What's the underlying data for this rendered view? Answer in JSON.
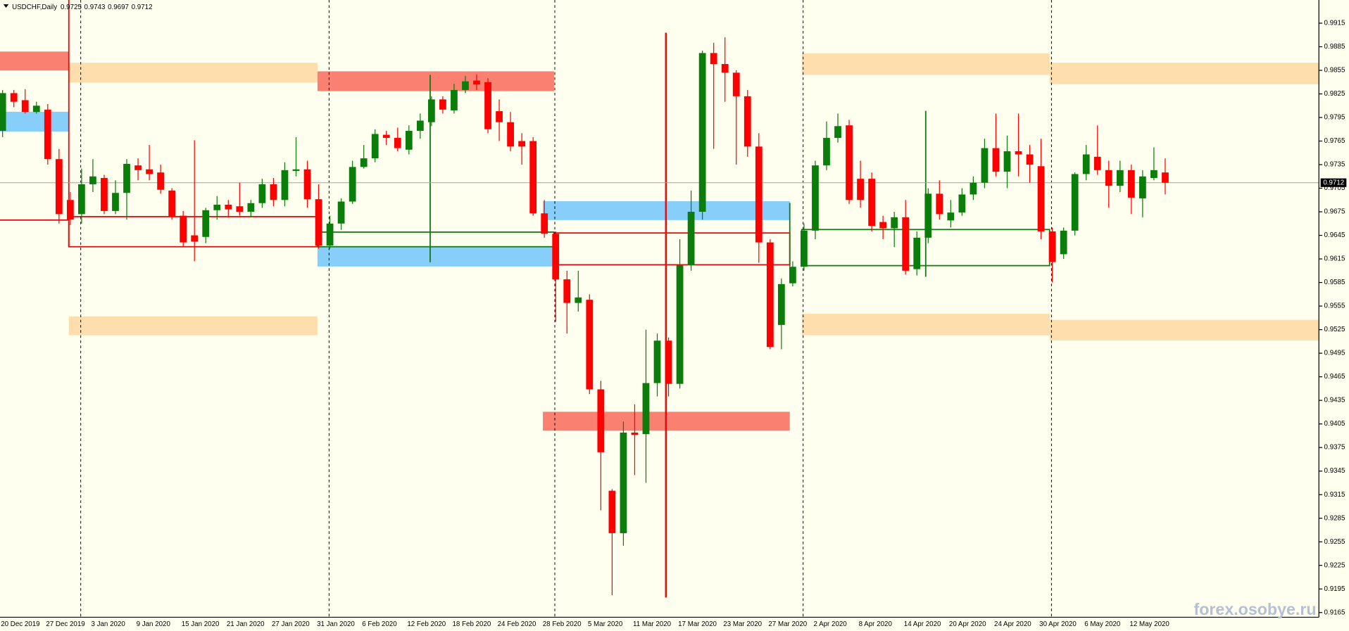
{
  "chart_data": {
    "type": "candlestick",
    "title": "USDCHF,Daily",
    "watermark": "forex.osobye.ru",
    "up_color": "#0b7d0b",
    "down_color": "#ff0000",
    "grid": false,
    "ylim": [
      0.9159,
      0.99445
    ],
    "yticks": [
      0.9915,
      0.9885,
      0.9855,
      0.9825,
      0.9795,
      0.9765,
      0.9735,
      0.9705,
      0.9675,
      0.9645,
      0.9615,
      0.9585,
      0.9555,
      0.9525,
      0.9495,
      0.9465,
      0.9435,
      0.9405,
      0.9375,
      0.9345,
      0.9315,
      0.9285,
      0.9255,
      0.9225,
      0.9195,
      0.9165
    ],
    "categories": [
      "20 Dec 2019",
      null,
      null,
      null,
      "27 Dec 2019",
      null,
      null,
      null,
      "3 Jan 2020",
      null,
      null,
      null,
      "9 Jan 2020",
      null,
      null,
      null,
      "15 Jan 2020",
      null,
      null,
      null,
      "21 Jan 2020",
      null,
      null,
      null,
      "27 Jan 2020",
      null,
      null,
      null,
      "31 Jan 2020",
      null,
      null,
      null,
      "6 Feb 2020",
      null,
      null,
      null,
      "12 Feb 2020",
      null,
      null,
      null,
      "18 Feb 2020",
      null,
      null,
      null,
      "24 Feb 2020",
      null,
      null,
      null,
      "28 Feb 2020",
      null,
      null,
      null,
      "5 Mar 2020",
      null,
      null,
      null,
      "11 Mar 2020",
      null,
      null,
      null,
      "17 Mar 2020",
      null,
      null,
      null,
      "23 Mar 2020",
      null,
      null,
      null,
      "27 Mar 2020",
      null,
      null,
      null,
      "2 Apr 2020",
      null,
      null,
      null,
      "8 Apr 2020",
      null,
      null,
      null,
      "14 Apr 2020",
      null,
      null,
      null,
      "20 Apr 2020",
      null,
      null,
      null,
      "24 Apr 2020",
      null,
      null,
      null,
      "30 Apr 2020",
      null,
      null,
      null,
      "6 May 2020",
      null,
      null,
      null,
      "12 May 2020",
      null,
      null,
      null
    ],
    "open": [
      0.9778,
      0.9826,
      0.9817,
      0.9802,
      0.9805,
      0.9742,
      0.969,
      0.9672,
      0.971,
      0.9718,
      0.9676,
      0.9699,
      0.9734,
      0.9729,
      0.9725,
      0.9702,
      0.967,
      0.9645,
      0.9643,
      0.9677,
      0.9684,
      0.9682,
      0.9675,
      0.9686,
      0.971,
      0.969,
      0.9727,
      0.9729,
      0.9691,
      0.9632,
      0.966,
      0.9688,
      0.9732,
      0.9743,
      0.9773,
      0.9769,
      0.9754,
      0.9778,
      0.9789,
      0.9818,
      0.9804,
      0.983,
      0.9842,
      0.984,
      0.9803,
      0.9789,
      0.9765,
      0.9765,
      0.9673,
      0.9647,
      0.9589,
      0.9559,
      0.9563,
      0.9449,
      0.932,
      0.9266,
      0.9394,
      0.9392,
      0.9457,
      0.9511,
      0.9456,
      0.9607,
      0.9675,
      0.9877,
      0.9863,
      0.9852,
      0.9822,
      0.9758,
      0.9636,
      0.9531,
      0.9584,
      0.9605,
      0.9651,
      0.9734,
      0.9769,
      0.9785,
      0.9717,
      0.9717,
      0.9662,
      0.9654,
      0.9668,
      0.9602,
      0.9642,
      0.9698,
      0.9664,
      0.9674,
      0.9697,
      0.9712,
      0.9756,
      0.9726,
      0.9752,
      0.9748,
      0.9733,
      0.965,
      0.9621,
      0.9651,
      0.9723,
      0.9745,
      0.9728,
      0.9708,
      0.9728,
      0.9692,
      0.9718,
      0.9725
    ],
    "high": [
      0.983,
      0.983,
      0.9831,
      0.9815,
      0.9812,
      0.9755,
      0.97,
      0.973,
      0.9742,
      0.9722,
      0.9715,
      0.9742,
      0.9743,
      0.976,
      0.9735,
      0.9705,
      0.9676,
      0.9766,
      0.968,
      0.9695,
      0.969,
      0.9712,
      0.969,
      0.9717,
      0.9718,
      0.9738,
      0.977,
      0.974,
      0.971,
      0.967,
      0.9692,
      0.974,
      0.976,
      0.978,
      0.9778,
      0.9782,
      0.9785,
      0.98,
      0.9822,
      0.9822,
      0.9838,
      0.9848,
      0.985,
      0.9845,
      0.9818,
      0.9802,
      0.9775,
      0.977,
      0.969,
      0.965,
      0.96,
      0.96,
      0.957,
      0.946,
      0.9322,
      0.9408,
      0.943,
      0.9525,
      0.952,
      0.9515,
      0.964,
      0.9702,
      0.988,
      0.989,
      0.9897,
      0.9855,
      0.983,
      0.9775,
      0.964,
      0.959,
      0.9612,
      0.966,
      0.974,
      0.979,
      0.98,
      0.9792,
      0.974,
      0.9725,
      0.967,
      0.9675,
      0.969,
      0.965,
      0.9705,
      0.9715,
      0.969,
      0.9705,
      0.972,
      0.9768,
      0.98,
      0.9772,
      0.98,
      0.976,
      0.9768,
      0.9655,
      0.9655,
      0.9725,
      0.976,
      0.9785,
      0.974,
      0.974,
      0.9735,
      0.9728,
      0.9757,
      0.9743
    ],
    "low": [
      0.977,
      0.9808,
      0.98,
      0.98,
      0.9735,
      0.966,
      0.9658,
      0.966,
      0.97,
      0.9672,
      0.9672,
      0.9665,
      0.9715,
      0.9715,
      0.9698,
      0.9665,
      0.963,
      0.9612,
      0.9635,
      0.9665,
      0.9668,
      0.967,
      0.9668,
      0.968,
      0.9682,
      0.9682,
      0.972,
      0.968,
      0.9628,
      0.9628,
      0.9652,
      0.9685,
      0.973,
      0.9738,
      0.976,
      0.9752,
      0.9748,
      0.9768,
      0.9784,
      0.98,
      0.98,
      0.9826,
      0.983,
      0.9775,
      0.9765,
      0.9752,
      0.9735,
      0.967,
      0.9642,
      0.9535,
      0.952,
      0.9548,
      0.9443,
      0.9295,
      0.9187,
      0.925,
      0.934,
      0.933,
      0.944,
      0.944,
      0.945,
      0.96,
      0.9665,
      0.9755,
      0.9815,
      0.9735,
      0.9745,
      0.961,
      0.95,
      0.95,
      0.958,
      0.96,
      0.964,
      0.9728,
      0.9763,
      0.9685,
      0.968,
      0.965,
      0.964,
      0.963,
      0.9595,
      0.9594,
      0.9635,
      0.9665,
      0.9655,
      0.967,
      0.969,
      0.9705,
      0.972,
      0.9705,
      0.972,
      0.9712,
      0.964,
      0.9585,
      0.9615,
      0.9645,
      0.9715,
      0.9722,
      0.968,
      0.97,
      0.9672,
      0.9668,
      0.9715,
      0.9697
    ],
    "close": [
      0.9826,
      0.9815,
      0.9802,
      0.981,
      0.9742,
      0.9672,
      0.9665,
      0.971,
      0.972,
      0.9676,
      0.9699,
      0.9736,
      0.9728,
      0.9723,
      0.9703,
      0.9669,
      0.9636,
      0.9637,
      0.9677,
      0.9684,
      0.9678,
      0.9675,
      0.9686,
      0.971,
      0.969,
      0.9728,
      0.9729,
      0.9691,
      0.9632,
      0.966,
      0.9688,
      0.9732,
      0.9743,
      0.9774,
      0.9769,
      0.9756,
      0.9778,
      0.9791,
      0.9818,
      0.9805,
      0.983,
      0.9841,
      0.9837,
      0.978,
      0.9789,
      0.9758,
      0.9758,
      0.9673,
      0.9647,
      0.9589,
      0.9559,
      0.9566,
      0.9449,
      0.9369,
      0.9266,
      0.9394,
      0.9391,
      0.9457,
      0.9511,
      0.9456,
      0.9607,
      0.9675,
      0.9877,
      0.9863,
      0.9852,
      0.9822,
      0.9758,
      0.9636,
      0.9503,
      0.9583,
      0.9605,
      0.9651,
      0.9734,
      0.9769,
      0.9784,
      0.969,
      0.969,
      0.9657,
      0.9654,
      0.9668,
      0.96,
      0.9642,
      0.9698,
      0.9672,
      0.9674,
      0.9697,
      0.9712,
      0.9756,
      0.9726,
      0.9752,
      0.9748,
      0.9735,
      0.965,
      0.9611,
      0.9651,
      0.9723,
      0.9748,
      0.9728,
      0.9708,
      0.9728,
      0.9693,
      0.972,
      0.9728,
      0.9712
    ]
  }
}
